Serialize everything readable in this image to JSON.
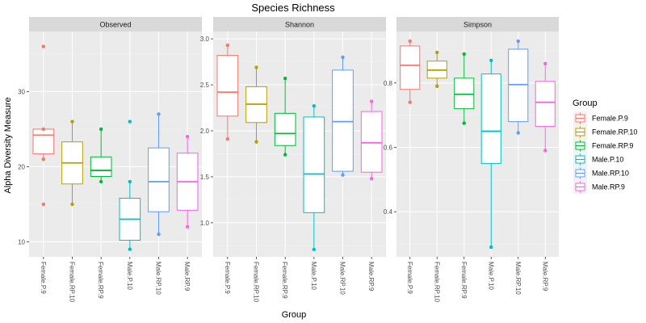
{
  "chart_data": {
    "type": "boxplot",
    "title": "Species Richness",
    "xlabel": "Group",
    "ylabel": "Alpha Diversity Measure",
    "legend": {
      "title": "Group",
      "position": "right"
    },
    "groups": [
      "Female.P.9",
      "Female.RP.10",
      "Female.RP.9",
      "Male.P.10",
      "Male.RP.10",
      "Male.RP.9"
    ],
    "colors": [
      "#F8766D",
      "#B79F00",
      "#00BA38",
      "#00BFC4",
      "#619CFF",
      "#F564E3"
    ],
    "grid": true,
    "panels": [
      {
        "name": "Observed",
        "ylim": [
          8,
          38
        ],
        "yticks": [
          10,
          20,
          30
        ],
        "boxes": [
          {
            "group": "Female.P.9",
            "q1": 21.7,
            "median": 24.2,
            "q3": 25.0,
            "lower": 21.0,
            "upper": 25.0,
            "outliers": [
              36,
              15
            ]
          },
          {
            "group": "Female.RP.10",
            "q1": 17.7,
            "median": 20.5,
            "q3": 23.3,
            "lower": 15.0,
            "upper": 26.0,
            "outliers": []
          },
          {
            "group": "Female.RP.9",
            "q1": 18.7,
            "median": 19.5,
            "q3": 21.3,
            "lower": 18.0,
            "upper": 25.0,
            "outliers": []
          },
          {
            "group": "Male.P.10",
            "q1": 10.2,
            "median": 13.0,
            "q3": 15.8,
            "lower": 9.0,
            "upper": 18.0,
            "outliers": [
              26
            ]
          },
          {
            "group": "Male.RP.10",
            "q1": 14.0,
            "median": 18.0,
            "q3": 22.5,
            "lower": 11.0,
            "upper": 27.0,
            "outliers": []
          },
          {
            "group": "Male.RP.9",
            "q1": 14.2,
            "median": 18.0,
            "q3": 21.8,
            "lower": 12.0,
            "upper": 24.0,
            "outliers": []
          }
        ]
      },
      {
        "name": "Shannon",
        "ylim": [
          0.63,
          3.08
        ],
        "yticks": [
          1.0,
          1.5,
          2.0,
          2.5,
          3.0
        ],
        "boxes": [
          {
            "group": "Female.P.9",
            "q1": 2.16,
            "median": 2.42,
            "q3": 2.82,
            "lower": 1.91,
            "upper": 2.93,
            "outliers": []
          },
          {
            "group": "Female.RP.10",
            "q1": 2.09,
            "median": 2.29,
            "q3": 2.48,
            "lower": 1.88,
            "upper": 2.69,
            "outliers": []
          },
          {
            "group": "Female.RP.9",
            "q1": 1.84,
            "median": 1.97,
            "q3": 2.19,
            "lower": 1.74,
            "upper": 2.57,
            "outliers": []
          },
          {
            "group": "Male.P.10",
            "q1": 1.11,
            "median": 1.53,
            "q3": 2.15,
            "lower": 0.71,
            "upper": 2.27,
            "outliers": []
          },
          {
            "group": "Male.RP.10",
            "q1": 1.56,
            "median": 2.1,
            "q3": 2.66,
            "lower": 1.52,
            "upper": 2.8,
            "outliers": []
          },
          {
            "group": "Male.RP.9",
            "q1": 1.55,
            "median": 1.87,
            "q3": 2.21,
            "lower": 1.48,
            "upper": 2.32,
            "outliers": []
          }
        ]
      },
      {
        "name": "Simpson",
        "ylim": [
          0.26,
          0.96
        ],
        "yticks": [
          0.4,
          0.6,
          0.8
        ],
        "boxes": [
          {
            "group": "Female.P.9",
            "q1": 0.78,
            "median": 0.855,
            "q3": 0.915,
            "lower": 0.74,
            "upper": 0.93,
            "outliers": []
          },
          {
            "group": "Female.RP.10",
            "q1": 0.815,
            "median": 0.84,
            "q3": 0.868,
            "lower": 0.79,
            "upper": 0.895,
            "outliers": []
          },
          {
            "group": "Female.RP.9",
            "q1": 0.72,
            "median": 0.765,
            "q3": 0.815,
            "lower": 0.675,
            "upper": 0.89,
            "outliers": []
          },
          {
            "group": "Male.P.10",
            "q1": 0.55,
            "median": 0.65,
            "q3": 0.828,
            "lower": 0.29,
            "upper": 0.87,
            "outliers": []
          },
          {
            "group": "Male.RP.10",
            "q1": 0.68,
            "median": 0.795,
            "q3": 0.905,
            "lower": 0.645,
            "upper": 0.93,
            "outliers": []
          },
          {
            "group": "Male.RP.9",
            "q1": 0.665,
            "median": 0.74,
            "q3": 0.805,
            "lower": 0.59,
            "upper": 0.86,
            "outliers": []
          }
        ]
      }
    ]
  }
}
